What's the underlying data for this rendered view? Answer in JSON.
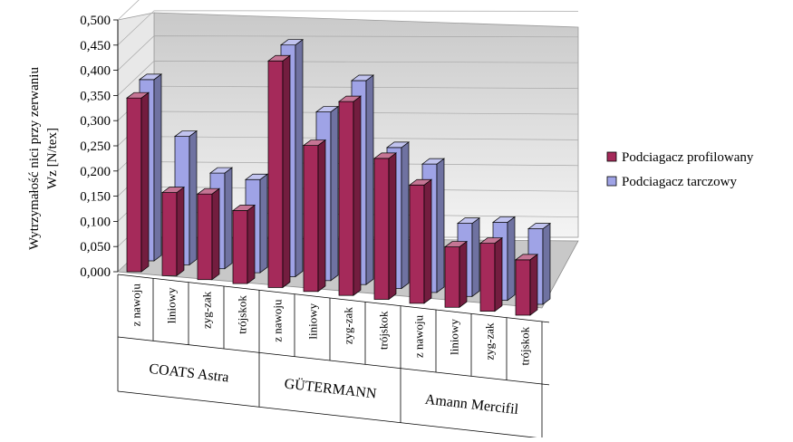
{
  "chart_data": {
    "type": "bar",
    "ylabel_line1": "Wytrzymałość nici przy zerwaniu",
    "ylabel_line2": "Wz [N/tex]",
    "ylim": [
      0,
      0.5
    ],
    "yticks": [
      "0,000",
      "0,050",
      "0,100",
      "0,150",
      "0,200",
      "0,250",
      "0,300",
      "0,350",
      "0,400",
      "0,450",
      "0,500"
    ],
    "groups": [
      {
        "name": "COATS Astra",
        "categories": [
          "z nawoju",
          "liniowy",
          "zyg-zak",
          "trójskok"
        ]
      },
      {
        "name": "GÜTERMANN",
        "categories": [
          "z nawoju",
          "liniowy",
          "zyg-zak",
          "trójskok"
        ]
      },
      {
        "name": "Amann Mercifil",
        "categories": [
          "z nawoju",
          "liniowy",
          "zyg-zak",
          "trójskok"
        ]
      }
    ],
    "series": [
      {
        "name": "Podciagacz profilowany",
        "color": "#a52a5a",
        "values": [
          0.345,
          0.165,
          0.17,
          0.145,
          0.45,
          0.29,
          0.385,
          0.28,
          0.235,
          0.12,
          0.135,
          0.11
        ]
      },
      {
        "name": "Podciagacz tarczowy",
        "color": "#9fa3e6",
        "values": [
          0.36,
          0.255,
          0.19,
          0.185,
          0.46,
          0.335,
          0.405,
          0.28,
          0.255,
          0.145,
          0.155,
          0.15
        ]
      }
    ],
    "grid": true,
    "legend_position": "right"
  }
}
